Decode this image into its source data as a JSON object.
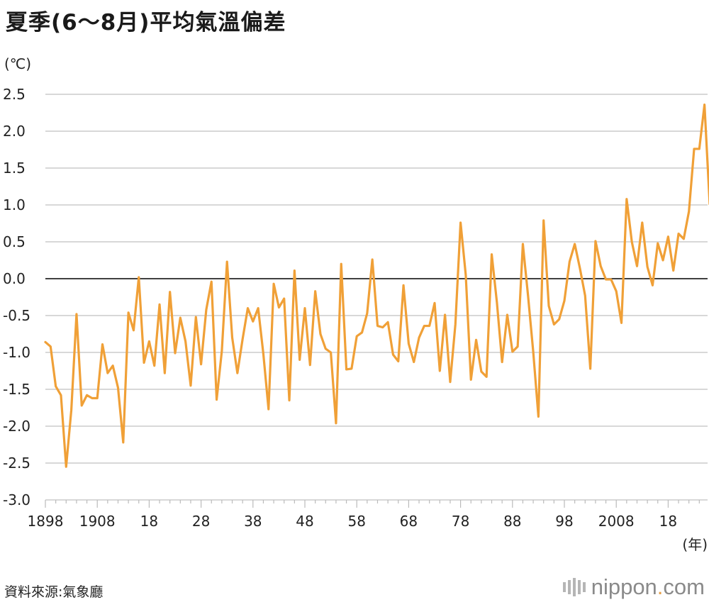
{
  "title": "夏季(6〜8月)平均氣溫偏差",
  "unit_label": "(℃)",
  "xunit_label": "(年)",
  "source": "資料來源:氣象廳",
  "brand": {
    "name": "nippon",
    "dot": ".",
    "tld": "com",
    "logo_icon": "nippon-logo-bars-icon"
  },
  "colors": {
    "line": "#f0a037",
    "grid": "#cccccc",
    "zero": "#000000"
  },
  "chart_data": {
    "type": "line",
    "title": "夏季(6〜8月)平均氣溫偏差",
    "ylabel": "(℃)",
    "xlabel": "(年)",
    "ylim": [
      -3.0,
      2.5
    ],
    "yticks": [
      "2.5",
      "2.0",
      "1.5",
      "1.0",
      "0.5",
      "0.0",
      "-0.5",
      "-1.0",
      "-1.5",
      "-2.0",
      "-2.5",
      "-3.0"
    ],
    "xticks": [
      {
        "year": 1898,
        "label": "1898"
      },
      {
        "year": 1908,
        "label": "1908"
      },
      {
        "year": 1918,
        "label": "18"
      },
      {
        "year": 1928,
        "label": "28"
      },
      {
        "year": 1938,
        "label": "38"
      },
      {
        "year": 1948,
        "label": "48"
      },
      {
        "year": 1958,
        "label": "58"
      },
      {
        "year": 1968,
        "label": "68"
      },
      {
        "year": 1978,
        "label": "78"
      },
      {
        "year": 1988,
        "label": "88"
      },
      {
        "year": 1998,
        "label": "98"
      },
      {
        "year": 2008,
        "label": "2008"
      },
      {
        "year": 2018,
        "label": "18"
      }
    ],
    "grid": true,
    "x_start": 1898,
    "series": [
      {
        "color": "#f0a037",
        "values": [
          -0.86,
          -0.92,
          -1.46,
          -1.58,
          -2.55,
          -1.78,
          -0.48,
          -1.72,
          -1.58,
          -1.62,
          -1.62,
          -0.89,
          -1.28,
          -1.18,
          -1.48,
          -2.22,
          -0.46,
          -0.7,
          0.02,
          -1.14,
          -0.85,
          -1.18,
          -0.35,
          -1.28,
          -0.18,
          -1.01,
          -0.53,
          -0.85,
          -1.45,
          -0.52,
          -1.16,
          -0.42,
          -0.04,
          -1.64,
          -0.98,
          0.23,
          -0.8,
          -1.28,
          -0.82,
          -0.4,
          -0.58,
          -0.4,
          -1.02,
          -1.77,
          -0.07,
          -0.39,
          -0.27,
          -1.65,
          0.11,
          -1.1,
          -0.4,
          -1.17,
          -0.17,
          -0.75,
          -0.95,
          -1.0,
          -1.96,
          0.2,
          -1.23,
          -1.22,
          -0.78,
          -0.73,
          -0.47,
          0.26,
          -0.64,
          -0.66,
          -0.59,
          -1.03,
          -1.12,
          -0.09,
          -0.88,
          -1.13,
          -0.8,
          -0.64,
          -0.64,
          -0.33,
          -1.25,
          -0.49,
          -1.4,
          -0.62,
          0.76,
          0.05,
          -1.37,
          -0.83,
          -1.26,
          -1.33,
          0.33,
          -0.32,
          -1.13,
          -0.49,
          -0.99,
          -0.92,
          0.47,
          -0.23,
          -0.99,
          -1.87,
          0.79,
          -0.37,
          -0.62,
          -0.55,
          -0.3,
          0.23,
          0.47,
          0.14,
          -0.23,
          -1.22,
          0.51,
          0.17,
          -0.01,
          -0.01,
          -0.17,
          -0.6,
          1.08,
          0.5,
          0.17,
          0.76,
          0.16,
          -0.09,
          0.48,
          0.25,
          0.57,
          0.11,
          0.61,
          0.54,
          0.91,
          1.76,
          1.76,
          2.36,
          1.01
        ]
      }
    ]
  }
}
